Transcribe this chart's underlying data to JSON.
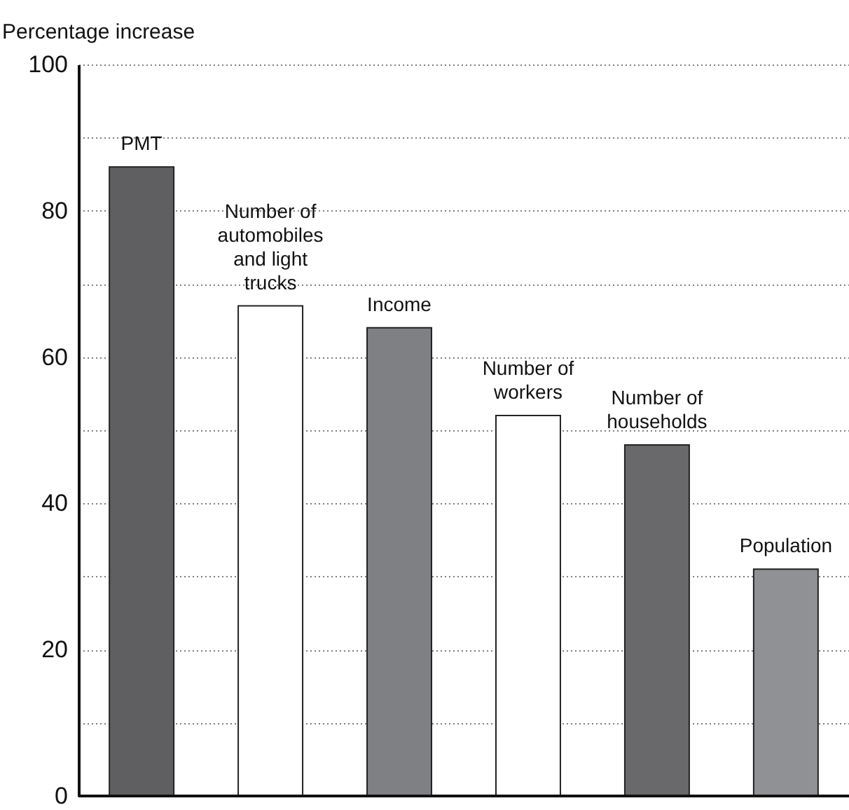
{
  "chart_data": {
    "type": "bar",
    "ylabel": "Percentage increase",
    "categories": [
      "PMT",
      "Number of automobiles and light trucks",
      "Income",
      "Number of workers",
      "Number of households",
      "Population"
    ],
    "values": [
      86,
      67,
      64,
      52,
      48,
      31
    ],
    "colors": [
      "#5f5f61",
      "#ffffff",
      "#7f8083",
      "#ffffff",
      "#69696c",
      "#909194"
    ],
    "ylim": [
      0,
      100
    ],
    "yticks": [
      0,
      {
        "value": 10,
        "label": null
      },
      20,
      {
        "value": 30,
        "label": null
      },
      40,
      {
        "value": 50,
        "label": null
      },
      60,
      {
        "value": 70,
        "label": null
      },
      80,
      {
        "value": 90,
        "label": null
      },
      100
    ],
    "grid": "y"
  }
}
